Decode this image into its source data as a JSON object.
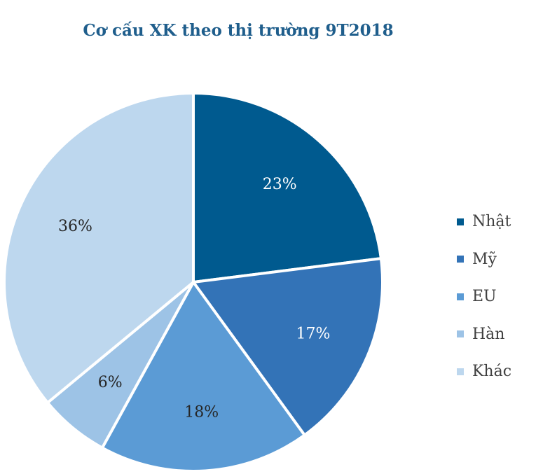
{
  "chart_data": {
    "type": "pie",
    "title": "Cơ cấu XK theo thị trường 9T2018",
    "categories": [
      "Nhật",
      "Mỹ",
      "EU",
      "Hàn",
      "Khác"
    ],
    "values": [
      23,
      17,
      18,
      6,
      36
    ],
    "labels": [
      "23%",
      "17%",
      "18%",
      "6%",
      "36%"
    ],
    "colors": [
      "#005a8f",
      "#3373b7",
      "#5b9bd5",
      "#9dc3e6",
      "#bdd7ee"
    ],
    "label_colors": [
      "#ffffff",
      "#ffffff",
      "#262626",
      "#262626",
      "#262626"
    ],
    "legend": "right"
  }
}
